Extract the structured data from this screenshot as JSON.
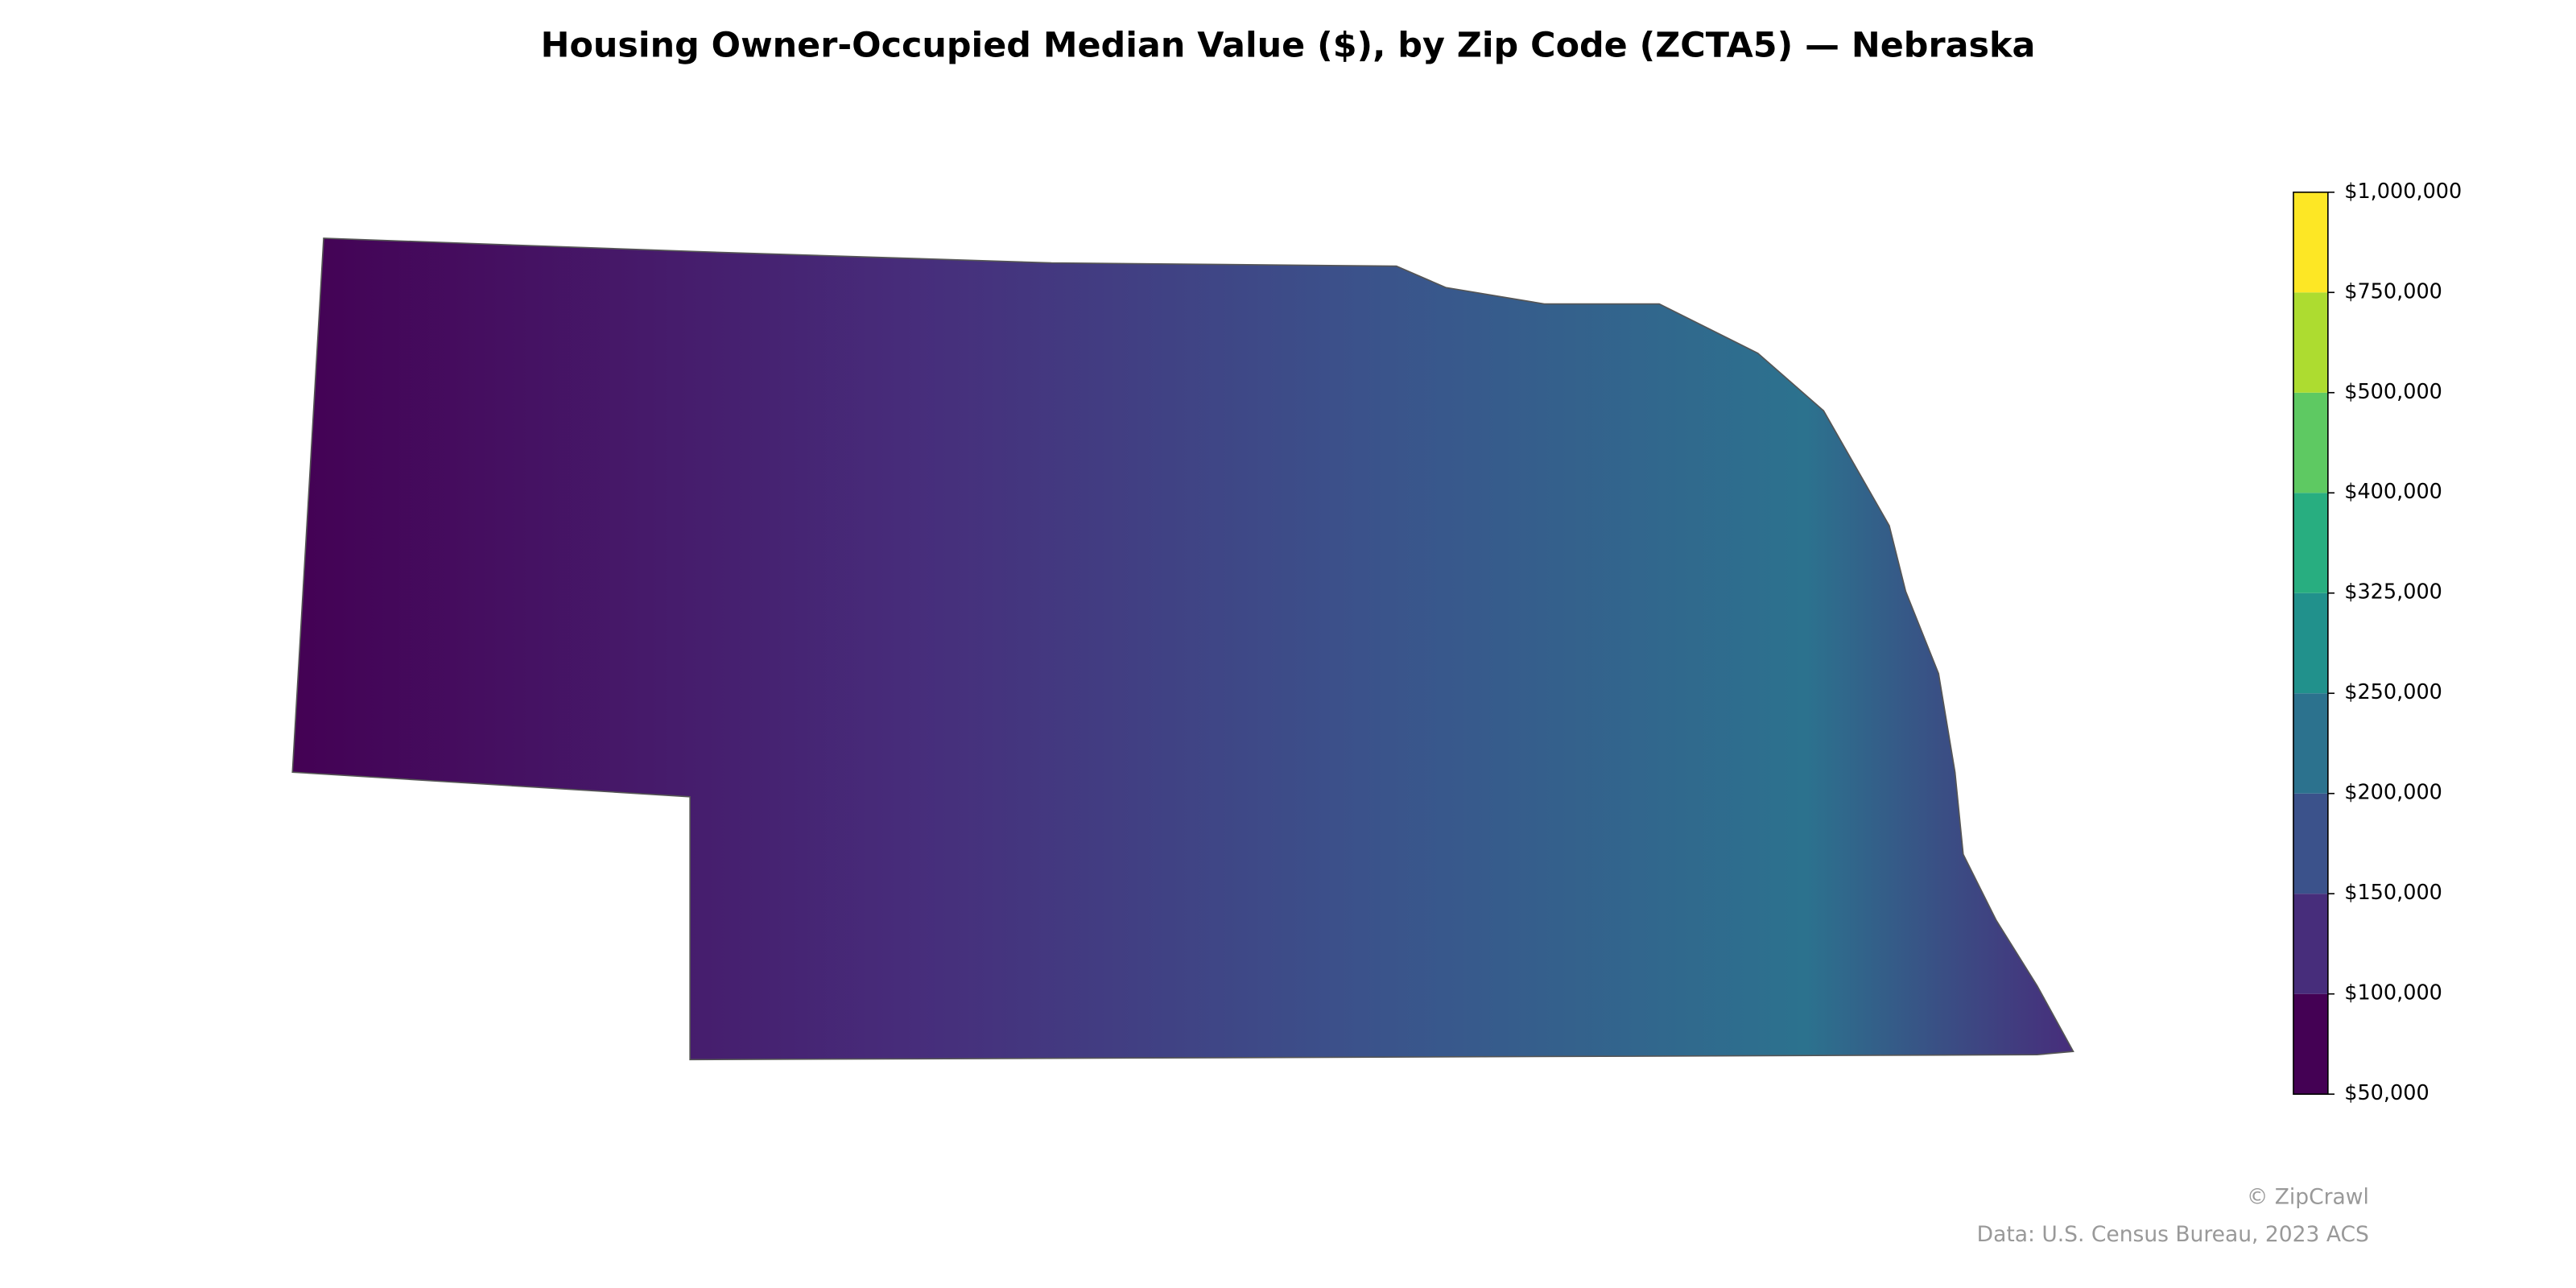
{
  "chart_data": {
    "type": "choropleth",
    "title": "Housing Owner-Occupied Median Value ($), by Zip Code (ZCTA5) — Nebraska",
    "colorbar": {
      "ticks": [
        {
          "value": 50000,
          "label": "$50,000"
        },
        {
          "value": 100000,
          "label": "$100,000"
        },
        {
          "value": 150000,
          "label": "$150,000"
        },
        {
          "value": 200000,
          "label": "$200,000"
        },
        {
          "value": 250000,
          "label": "$250,000"
        },
        {
          "value": 325000,
          "label": "$325,000"
        },
        {
          "value": 400000,
          "label": "$400,000"
        },
        {
          "value": 500000,
          "label": "$500,000"
        },
        {
          "value": 750000,
          "label": "$750,000"
        },
        {
          "value": 1000000,
          "label": "$1,000,000"
        }
      ],
      "colors": [
        "#440154",
        "#472d7b",
        "#3b528b",
        "#2c728e",
        "#21918c",
        "#28ae80",
        "#5ec962",
        "#addc30",
        "#fde725"
      ]
    },
    "credit": "© ZipCrawl",
    "source": "Data: U.S. Census Bureau, 2023 ACS"
  }
}
